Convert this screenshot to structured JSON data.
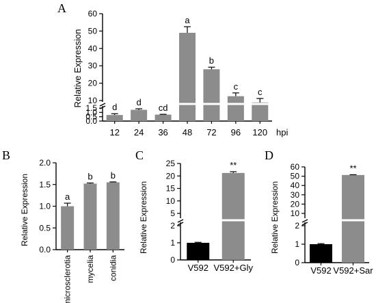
{
  "colors": {
    "bar": "#8c8c8c",
    "bar_dark": "#000000",
    "axis": "#000000",
    "break": "#ffffff"
  },
  "chart_data": [
    {
      "panel_label": "A",
      "type": "bar",
      "categories": [
        "12",
        "24",
        "36",
        "48",
        "72",
        "96",
        "120"
      ],
      "x_unit": "hpi",
      "values": [
        0.7,
        1.3,
        1.9,
        49,
        28,
        12.5,
        8.9
      ],
      "errors": [
        0.15,
        0.12,
        0.18,
        3.5,
        1.2,
        1.9,
        2.3
      ],
      "significance": [
        "d",
        "d",
        "cd",
        "a",
        "b",
        "c",
        "c"
      ],
      "ylabel": "Relative Expression",
      "axis_break": {
        "lower_ylim": [
          0,
          1.5
        ],
        "upper_ylim": [
          10,
          60
        ]
      },
      "yticks_lower": [
        "0.0",
        "0.5",
        "1.0",
        "1.5"
      ],
      "yticks_upper": [
        "10",
        "20",
        "30",
        "40",
        "50",
        "60"
      ]
    },
    {
      "panel_label": "B",
      "type": "bar",
      "categories": [
        "microsclerotia",
        "mycelia",
        "conidia"
      ],
      "values": [
        1.0,
        1.52,
        1.55
      ],
      "errors": [
        0.07,
        0.015,
        0.01
      ],
      "significance": [
        "a",
        "b",
        "b"
      ],
      "ylabel": "Relative Expression",
      "ylim": [
        0,
        2.0
      ],
      "yticks": [
        "0.0",
        "0.5",
        "1.0",
        "1.5",
        "2.0"
      ]
    },
    {
      "panel_label": "C",
      "type": "bar",
      "categories": [
        "V592",
        "V592+Gly"
      ],
      "values": [
        1.0,
        21.2
      ],
      "errors": [
        0.03,
        0.5
      ],
      "significance": [
        "",
        "**"
      ],
      "ylabel": "Relative Expression",
      "axis_break": {
        "lower_ylim": [
          0,
          2
        ],
        "upper_ylim": [
          5,
          25
        ]
      },
      "yticks_lower": [
        "0",
        "1",
        "2"
      ],
      "yticks_upper": [
        "5",
        "10",
        "15",
        "20",
        "25"
      ]
    },
    {
      "panel_label": "D",
      "type": "bar",
      "categories": [
        "V592",
        "V592+Sar"
      ],
      "values": [
        1.0,
        51.3
      ],
      "errors": [
        0.03,
        0.3
      ],
      "significance": [
        "",
        "**"
      ],
      "ylabel": "Relative Expression",
      "axis_break": {
        "lower_ylim": [
          0,
          2
        ],
        "upper_ylim": [
          10,
          60
        ]
      },
      "yticks_lower": [
        "0",
        "1",
        "2"
      ],
      "yticks_upper": [
        "10",
        "20",
        "30",
        "40",
        "50",
        "60"
      ]
    }
  ]
}
